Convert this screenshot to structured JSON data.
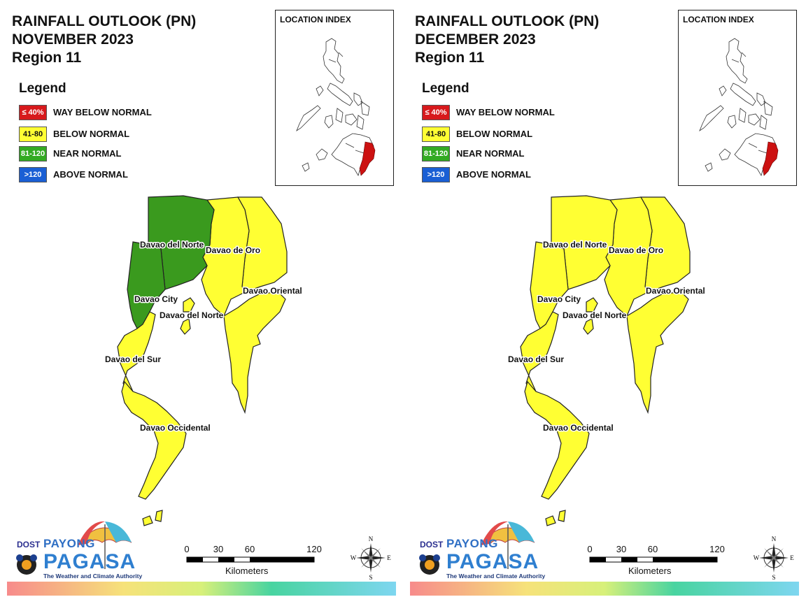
{
  "panels": [
    {
      "title_line1": "RAINFALL OUTLOOK (PN)",
      "title_line2": "NOVEMBER 2023",
      "title_line3": "Region 11",
      "inset_title": "LOCATION INDEX",
      "labels": {
        "davao_del_norte": "Davao del Norte",
        "davao_de_oro": "Davao de Oro",
        "davao_oriental": "Davao Oriental",
        "davao_city": "Davao City",
        "davao_del_norte_samal": "Davao del Norte",
        "davao_del_sur": "Davao del Sur",
        "davao_occidental": "Davao Occidental"
      },
      "categories": {
        "davao_del_norte": "near_normal",
        "davao_de_oro": "below_normal",
        "davao_oriental": "below_normal",
        "davao_city": "near_normal",
        "davao_del_norte_samal": "below_normal",
        "davao_del_sur": "below_normal",
        "davao_occidental": "below_normal"
      }
    },
    {
      "title_line1": "RAINFALL OUTLOOK (PN)",
      "title_line2": "DECEMBER 2023",
      "title_line3": "Region 11",
      "inset_title": "LOCATION INDEX",
      "labels": {
        "davao_del_norte": "Davao del Norte",
        "davao_de_oro": "Davao de Oro",
        "davao_oriental": "Davao Oriental",
        "davao_city": "Davao City",
        "davao_del_norte_samal": "Davao del Norte",
        "davao_del_sur": "Davao del Sur",
        "davao_occidental": "Davao Occidental"
      },
      "categories": {
        "davao_del_norte": "below_normal",
        "davao_de_oro": "below_normal",
        "davao_oriental": "below_normal",
        "davao_city": "below_normal",
        "davao_del_norte_samal": "below_normal",
        "davao_del_sur": "below_normal",
        "davao_occidental": "below_normal"
      }
    }
  ],
  "legend": {
    "title": "Legend",
    "items": [
      {
        "key": "way_below",
        "range": "≤ 40%",
        "label": "WAY BELOW NORMAL",
        "color": "#d7191c",
        "text_color": "#ffffff"
      },
      {
        "key": "below_normal",
        "range": "41-80",
        "label": "BELOW NORMAL",
        "color": "#ffff33",
        "text_color": "#111111"
      },
      {
        "key": "near_normal",
        "range": "81-120",
        "label": "NEAR NORMAL",
        "color": "#33aa22",
        "text_color": "#ffffff"
      },
      {
        "key": "above_normal",
        "range": ">120",
        "label": "ABOVE NORMAL",
        "color": "#1a5fd4",
        "text_color": "#ffffff"
      }
    ]
  },
  "colors": {
    "below_normal": "#ffff33",
    "near_normal": "#3a9a1e",
    "region_highlight": "#cc1111"
  },
  "scalebar": {
    "ticks": [
      "0",
      "30",
      "60",
      "120"
    ],
    "unit": "Kilometers"
  },
  "compass": {
    "n": "N",
    "s": "S",
    "e": "E",
    "w": "W"
  },
  "logo": {
    "dost": "DOST",
    "payong": "PAYONG",
    "pagasa": "PAGASA",
    "tagline": "The Weather and Climate Authority"
  }
}
